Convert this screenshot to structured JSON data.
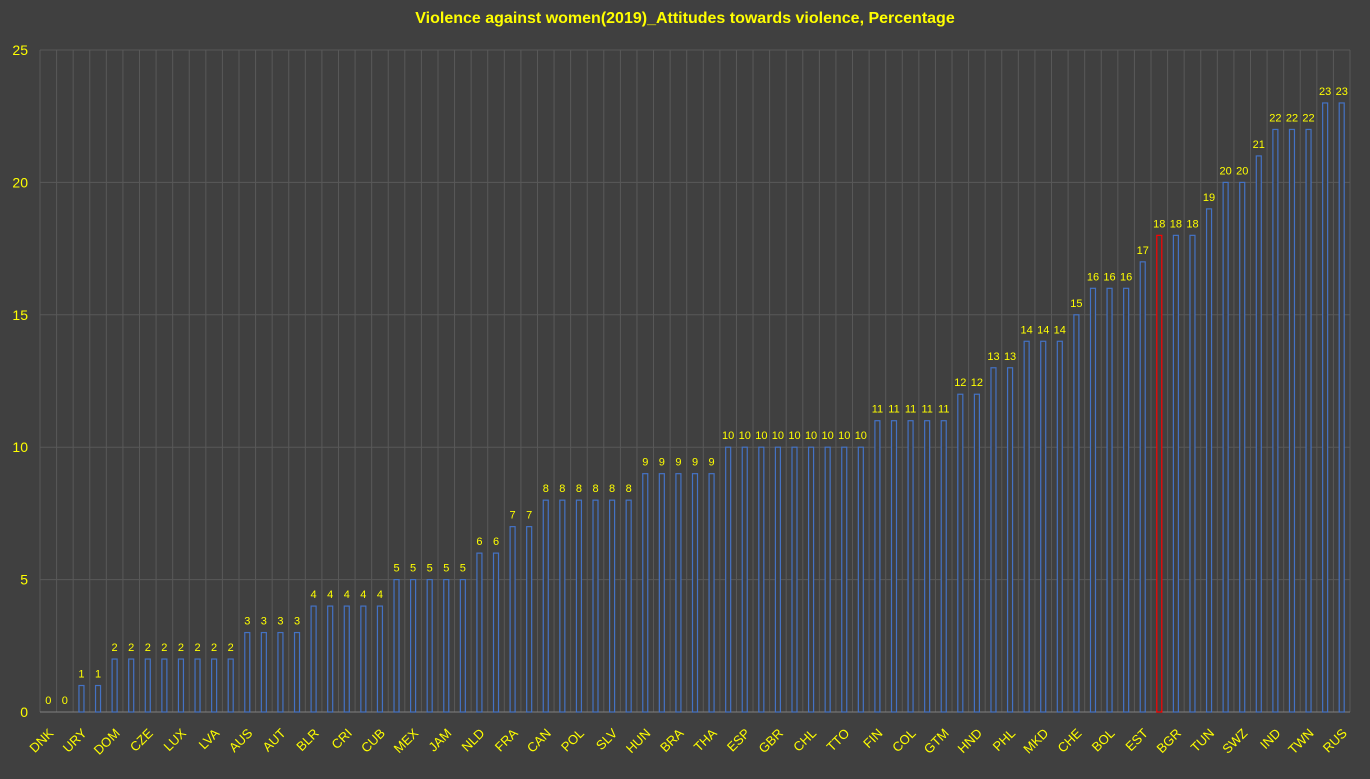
{
  "chart_data": {
    "type": "bar",
    "title": "Violence against women(2019)_Attitudes towards violence, Percentage",
    "xlabel": "",
    "ylabel": "",
    "ylim": [
      0,
      25
    ],
    "yticks": [
      0,
      5,
      10,
      15,
      20,
      25
    ],
    "grid": true,
    "categories": [
      "DNK",
      "",
      "URY",
      "",
      "DOM",
      "",
      "CZE",
      "",
      "LUX",
      "",
      "LVA",
      "",
      "AUS",
      "",
      "AUT",
      "",
      "BLR",
      "",
      "CRI",
      "",
      "CUB",
      "",
      "MEX",
      "",
      "JAM",
      "",
      "NLD",
      "",
      "FRA",
      "",
      "CAN",
      "",
      "POL",
      "",
      "SLV",
      "",
      "HUN",
      "",
      "BRA",
      "",
      "THA",
      "",
      "ESP",
      "",
      "GBR",
      "",
      "CHL",
      "",
      "TTO",
      "",
      "FIN",
      "",
      "COL",
      "",
      "GTM",
      "",
      "HND",
      "",
      "PHL",
      "",
      "MKD",
      "",
      "CHE",
      "",
      "BOL",
      "",
      "EST",
      "",
      "BGR",
      "",
      "TUN",
      "",
      "SWZ",
      "",
      "IND",
      "",
      "TWN",
      "",
      "RUS"
    ],
    "values": [
      0,
      0,
      1,
      1,
      2,
      2,
      2,
      2,
      2,
      2,
      2,
      2,
      3,
      3,
      3,
      3,
      4,
      4,
      4,
      4,
      4,
      5,
      5,
      5,
      5,
      5,
      6,
      6,
      7,
      7,
      8,
      8,
      8,
      8,
      8,
      8,
      9,
      9,
      9,
      9,
      9,
      10,
      10,
      10,
      10,
      10,
      10,
      10,
      10,
      10,
      11,
      11,
      11,
      11,
      11,
      12,
      12,
      13,
      13,
      14,
      14,
      14,
      15,
      16,
      16,
      16,
      17,
      18,
      18,
      18,
      19,
      20,
      20,
      21,
      22,
      22,
      22,
      23,
      23
    ],
    "highlight_index": 67,
    "colors": {
      "bar_fill": "#404040",
      "bar_stroke": "#4472C4",
      "highlight_stroke": "#FF0000",
      "text": "#FFFF00",
      "grid": "#595959",
      "background": "#404040"
    }
  }
}
